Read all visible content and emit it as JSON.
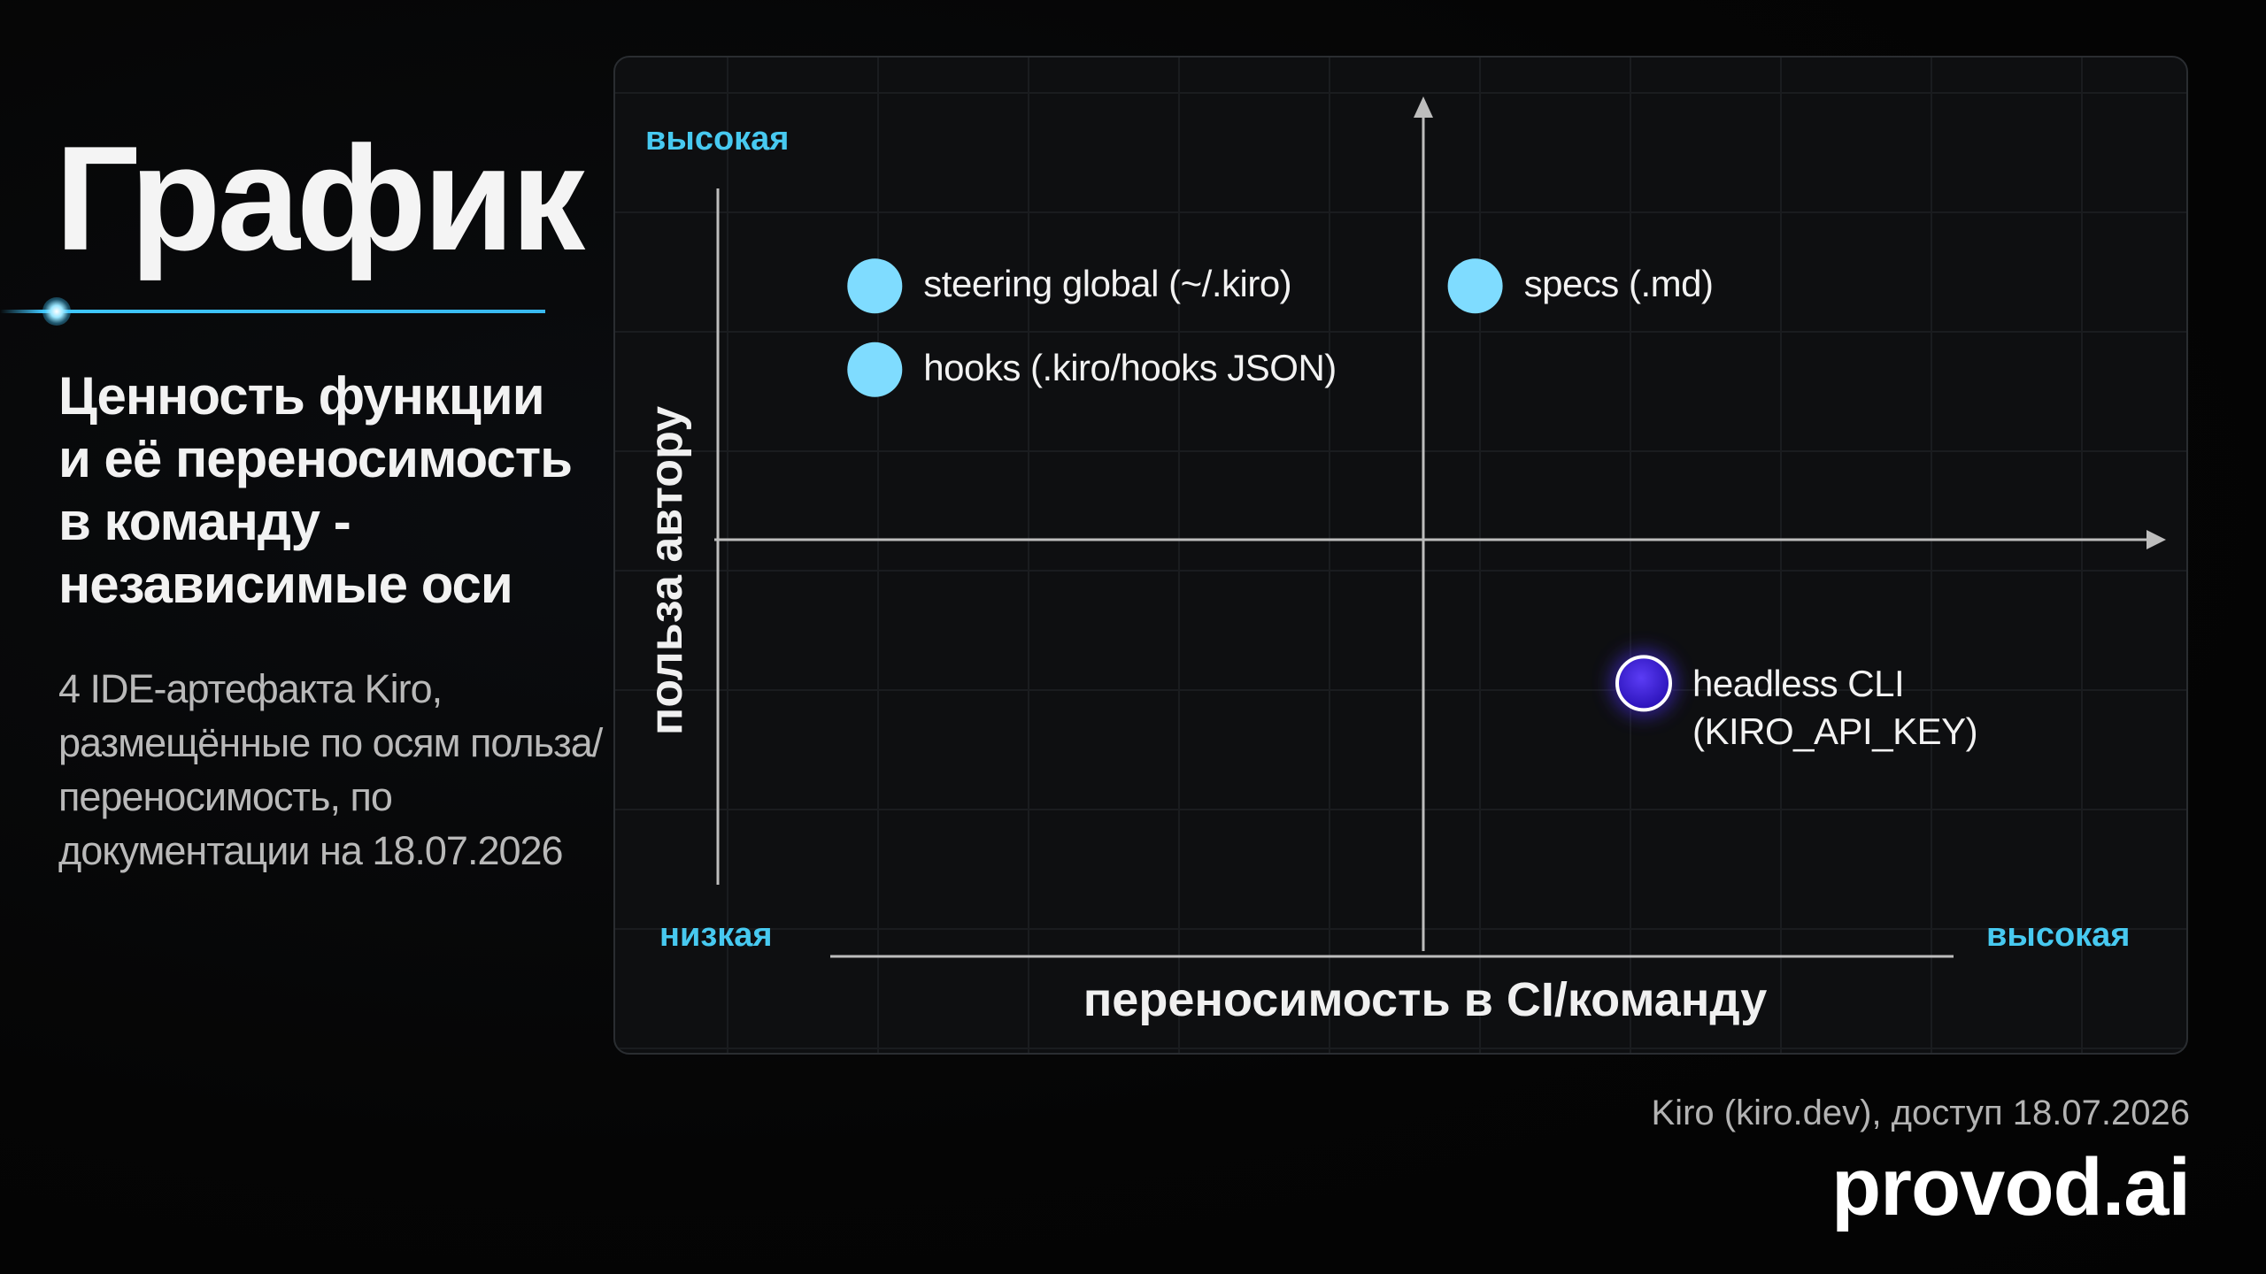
{
  "slide": {
    "title": "График 1",
    "subtitle": "Ценность функции и её переносимость в команду - независимые оси",
    "description": "4 IDE-артефакта Kiro, размещённые по осям польза/переносимость, по документации на 18.07.2026",
    "source": "Kiro (kiro.dev), доступ 18.07.2026",
    "brand": "provod.ai"
  },
  "colors": {
    "accent": "#47c9f0",
    "point": "#7fdcff",
    "highlight_point": "#3a1fd6",
    "background": "#050505",
    "panel": "#0e0f11"
  },
  "chart_data": {
    "type": "scatter",
    "title": "",
    "xlabel": "переносимость в CI/команду",
    "ylabel": "польза автору",
    "x_low_label": "низкая",
    "x_high_label": "высокая",
    "y_high_label": "высокая",
    "xlim": [
      0,
      1
    ],
    "ylim": [
      0,
      1
    ],
    "grid": true,
    "quadrants": true,
    "points": [
      {
        "label": "steering global (~/.kiro)",
        "x": 0.07,
        "y": 0.85,
        "highlight": false
      },
      {
        "label": "hooks (.kiro/hooks JSON)",
        "x": 0.07,
        "y": 0.73,
        "highlight": false
      },
      {
        "label": "specs (.md)",
        "x": 0.64,
        "y": 0.85,
        "highlight": false
      },
      {
        "label": "headless CLI\n(KIRO_API_KEY)",
        "x": 0.8,
        "y": 0.28,
        "highlight": true
      }
    ]
  }
}
